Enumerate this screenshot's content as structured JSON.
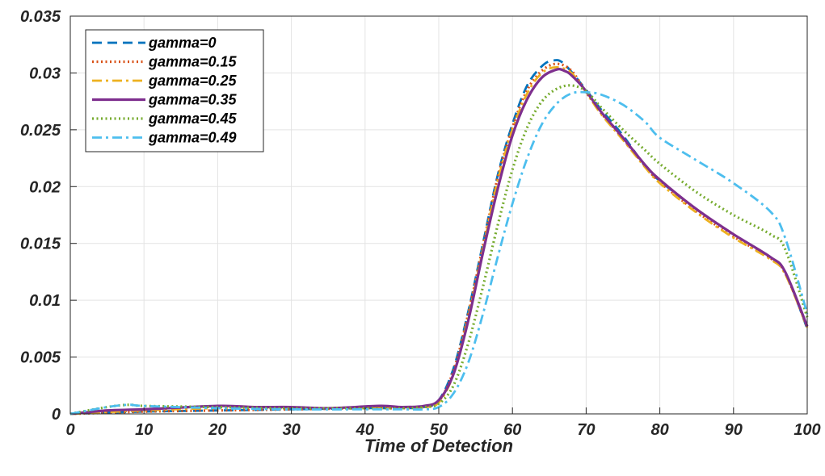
{
  "chart_data": {
    "type": "line",
    "title": "",
    "xlabel": "Time of Detection",
    "ylabel": "",
    "xlim": [
      0,
      100
    ],
    "ylim": [
      0,
      0.035
    ],
    "xticks": [
      0,
      10,
      20,
      30,
      40,
      50,
      60,
      70,
      80,
      90,
      100
    ],
    "xtick_labels": [
      "0",
      "10",
      "20",
      "30",
      "40",
      "50",
      "60",
      "70",
      "80",
      "90",
      "100"
    ],
    "yticks": [
      0,
      0.005,
      0.01,
      0.015,
      0.02,
      0.025,
      0.03,
      0.035
    ],
    "ytick_labels": [
      "0",
      "0.005",
      "0.01",
      "0.015",
      "0.02",
      "0.025",
      "0.03",
      "0.035"
    ],
    "grid": true,
    "legend_position": "top-left",
    "series": [
      {
        "name": "gamma=0",
        "color": "#0072BD",
        "dash": "dashed",
        "x": [
          0,
          10,
          20,
          30,
          40,
          45,
          48,
          50,
          52,
          54,
          56,
          58,
          60,
          62,
          64,
          65.5,
          67,
          70,
          72,
          75,
          78,
          80,
          85,
          90,
          95,
          97,
          100
        ],
        "y": [
          0,
          0.0002,
          0.0003,
          0.0004,
          0.0005,
          0.0005,
          0.0006,
          0.0012,
          0.004,
          0.009,
          0.015,
          0.021,
          0.0255,
          0.0289,
          0.0306,
          0.0311,
          0.0308,
          0.0285,
          0.0268,
          0.0245,
          0.0218,
          0.0205,
          0.018,
          0.0158,
          0.0138,
          0.0125,
          0.0075
        ]
      },
      {
        "name": "gamma=0.15",
        "color": "#D95319",
        "dash": "dotted",
        "x": [
          0,
          5,
          10,
          20,
          30,
          40,
          45,
          48,
          50,
          52,
          54,
          56,
          58,
          60,
          62,
          64,
          66,
          68,
          70,
          72,
          75,
          78,
          80,
          85,
          90,
          95,
          97,
          100
        ],
        "y": [
          0,
          0.0001,
          0.0002,
          0.0003,
          0.0004,
          0.0005,
          0.0005,
          0.0006,
          0.0011,
          0.0038,
          0.0088,
          0.0148,
          0.0208,
          0.0252,
          0.0285,
          0.0302,
          0.0308,
          0.0302,
          0.0283,
          0.0265,
          0.0242,
          0.0218,
          0.0204,
          0.0178,
          0.0156,
          0.0137,
          0.0124,
          0.0076
        ]
      },
      {
        "name": "gamma=0.25",
        "color": "#EDB120",
        "dash": "dashdot",
        "x": [
          0,
          10,
          20,
          30,
          40,
          45,
          48,
          50,
          52,
          54,
          56,
          58,
          60,
          62,
          64,
          66,
          68,
          70,
          72,
          75,
          78,
          80,
          85,
          90,
          95,
          97,
          100
        ],
        "y": [
          0,
          0.0003,
          0.0005,
          0.0005,
          0.0005,
          0.0005,
          0.0006,
          0.001,
          0.0035,
          0.0085,
          0.0145,
          0.0205,
          0.025,
          0.0282,
          0.03,
          0.0305,
          0.03,
          0.0283,
          0.0264,
          0.0241,
          0.0217,
          0.0203,
          0.0177,
          0.0155,
          0.0136,
          0.0123,
          0.0076
        ]
      },
      {
        "name": "gamma=0.35",
        "color": "#7E2F8E",
        "dash": "solid",
        "x": [
          0,
          5,
          10,
          20,
          25,
          30,
          35,
          42,
          45,
          48,
          50,
          52,
          54,
          56,
          58,
          60,
          62,
          64,
          66,
          67,
          68,
          70,
          72,
          75,
          78,
          80,
          85,
          90,
          95,
          97,
          100
        ],
        "y": [
          0,
          0.0003,
          0.0004,
          0.0007,
          0.0006,
          0.0006,
          0.0005,
          0.0007,
          0.0006,
          0.0007,
          0.0012,
          0.0035,
          0.0082,
          0.0142,
          0.0198,
          0.0245,
          0.0277,
          0.0296,
          0.0303,
          0.0302,
          0.0298,
          0.0284,
          0.0266,
          0.0243,
          0.0219,
          0.0206,
          0.018,
          0.0158,
          0.0138,
          0.0125,
          0.0077
        ]
      },
      {
        "name": "gamma=0.45",
        "color": "#77AC30",
        "dash": "dotted",
        "x": [
          0,
          5,
          8,
          10,
          20,
          30,
          40,
          45,
          48,
          50,
          52,
          54,
          56,
          58,
          60,
          62,
          64,
          66,
          68,
          70,
          72,
          75,
          78,
          80,
          85,
          90,
          95,
          97,
          100
        ],
        "y": [
          0,
          0.0006,
          0.0008,
          0.0007,
          0.0006,
          0.0005,
          0.0005,
          0.0005,
          0.0006,
          0.0009,
          0.0025,
          0.0062,
          0.0112,
          0.0166,
          0.0215,
          0.0252,
          0.0275,
          0.0286,
          0.0289,
          0.0284,
          0.027,
          0.025,
          0.0232,
          0.022,
          0.0195,
          0.0175,
          0.0158,
          0.0145,
          0.0085
        ]
      },
      {
        "name": "gamma=0.49",
        "color": "#4DBEEE",
        "dash": "dashdot",
        "x": [
          0,
          5,
          8,
          10,
          20,
          30,
          40,
          45,
          48,
          50,
          52,
          54,
          56,
          58,
          60,
          62,
          64,
          66,
          68,
          70,
          72,
          75,
          78,
          80,
          85,
          90,
          95,
          97,
          100
        ],
        "y": [
          0,
          0.0006,
          0.0008,
          0.0007,
          0.0005,
          0.0004,
          0.0004,
          0.0004,
          0.0004,
          0.0006,
          0.0018,
          0.0045,
          0.0088,
          0.0138,
          0.0185,
          0.0225,
          0.0255,
          0.0273,
          0.0282,
          0.0283,
          0.0281,
          0.0272,
          0.0257,
          0.0243,
          0.0223,
          0.0203,
          0.0178,
          0.0155,
          0.0088
        ]
      }
    ]
  }
}
